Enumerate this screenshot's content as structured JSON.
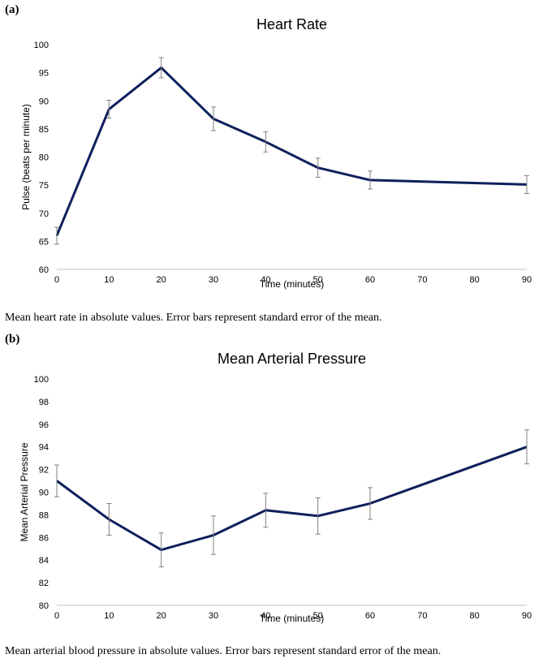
{
  "panels": [
    {
      "label": "(a)",
      "caption": "Mean heart rate in absolute values. Error bars represent standard error of the mean."
    },
    {
      "label": "(b)",
      "caption": "Mean arterial blood pressure in absolute values. Error bars represent standard error of the mean."
    }
  ],
  "chart_data": [
    {
      "type": "line",
      "title": "Heart Rate",
      "xlabel": "Time (minutes)",
      "ylabel": "Pulse (beats per minute)",
      "xlim": [
        0,
        90
      ],
      "ylim": [
        60,
        100
      ],
      "x_ticks": [
        0,
        10,
        20,
        30,
        40,
        50,
        60,
        70,
        80,
        90
      ],
      "y_ticks": [
        60,
        65,
        70,
        75,
        80,
        85,
        90,
        95,
        100
      ],
      "grid": false,
      "legend": "none",
      "line_color": "#0f1f5c",
      "error_bar_color": "#808080",
      "series": [
        {
          "x": [
            0,
            10,
            20,
            30,
            40,
            50,
            60,
            90
          ],
          "y": [
            66.0,
            88.5,
            95.9,
            86.8,
            82.7,
            78.1,
            75.9,
            75.1
          ],
          "error": [
            1.5,
            1.6,
            1.8,
            2.1,
            1.8,
            1.7,
            1.6,
            1.6
          ]
        }
      ]
    },
    {
      "type": "line",
      "title": "Mean Arterial Pressure",
      "xlabel": "Time (minutes)",
      "ylabel": "Mean Arterial Pressure",
      "xlim": [
        0,
        90
      ],
      "ylim": [
        80,
        100
      ],
      "x_ticks": [
        0,
        10,
        20,
        30,
        40,
        50,
        60,
        70,
        80,
        90
      ],
      "y_ticks": [
        80,
        82,
        84,
        86,
        88,
        90,
        92,
        94,
        96,
        98,
        100
      ],
      "grid": false,
      "legend": "none",
      "line_color": "#0f1f5c",
      "error_bar_color": "#808080",
      "series": [
        {
          "x": [
            0,
            10,
            20,
            30,
            40,
            50,
            60,
            90
          ],
          "y": [
            91.0,
            87.6,
            84.9,
            86.2,
            88.4,
            87.9,
            89.0,
            94.0
          ],
          "error": [
            1.4,
            1.4,
            1.5,
            1.7,
            1.5,
            1.6,
            1.4,
            1.5
          ]
        }
      ]
    }
  ]
}
